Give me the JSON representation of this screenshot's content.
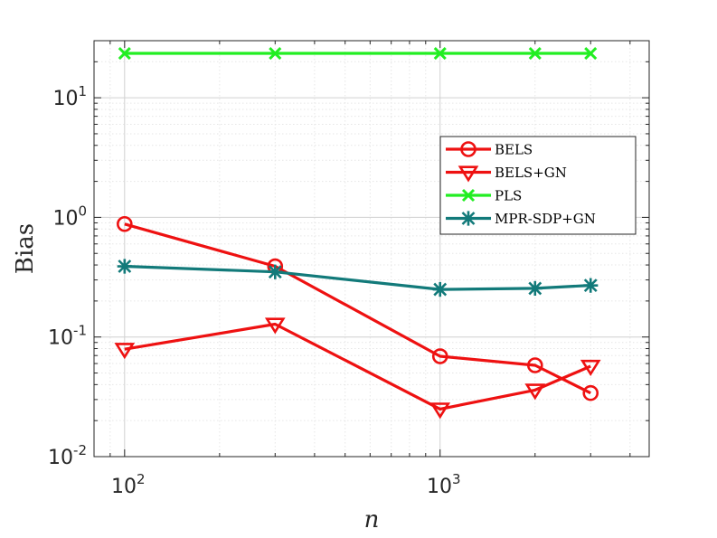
{
  "chart_data": {
    "type": "line",
    "xscale": "log",
    "yscale": "log",
    "xlabel": "n",
    "ylabel": "Bias",
    "grid": true,
    "minor_grid": true,
    "legend_position": "right",
    "xlim": [
      80,
      4600
    ],
    "ylim": [
      0.01,
      30
    ],
    "x_ticks": [
      {
        "base": "10",
        "exp": "2",
        "value": 100
      },
      {
        "base": "10",
        "exp": "3",
        "value": 1000
      }
    ],
    "y_ticks": [
      {
        "base": "10",
        "exp": "1",
        "value": 10
      },
      {
        "base": "10",
        "exp": "0",
        "value": 1
      },
      {
        "base": "10",
        "exp": "-1",
        "value": 0.1
      },
      {
        "base": "10",
        "exp": "-2",
        "value": 0.01
      }
    ],
    "x": [
      100,
      300,
      1000,
      2000,
      3000
    ],
    "series": [
      {
        "name": "BELS",
        "values": [
          0.88,
          0.39,
          0.069,
          0.058,
          0.034
        ],
        "color": "#ee1111",
        "marker": "circle"
      },
      {
        "name": "BELS+GN",
        "values": [
          0.079,
          0.128,
          0.025,
          0.036,
          0.057
        ],
        "color": "#ee1111",
        "marker": "triangle-down"
      },
      {
        "name": "PLS",
        "values": [
          23.5,
          23.5,
          23.5,
          23.5,
          23.5
        ],
        "color": "#22ee22",
        "marker": "x"
      },
      {
        "name": "MPR-SDP+GN",
        "values": [
          0.39,
          0.35,
          0.25,
          0.255,
          0.27
        ],
        "color": "#127a7a",
        "marker": "asterisk"
      }
    ]
  }
}
